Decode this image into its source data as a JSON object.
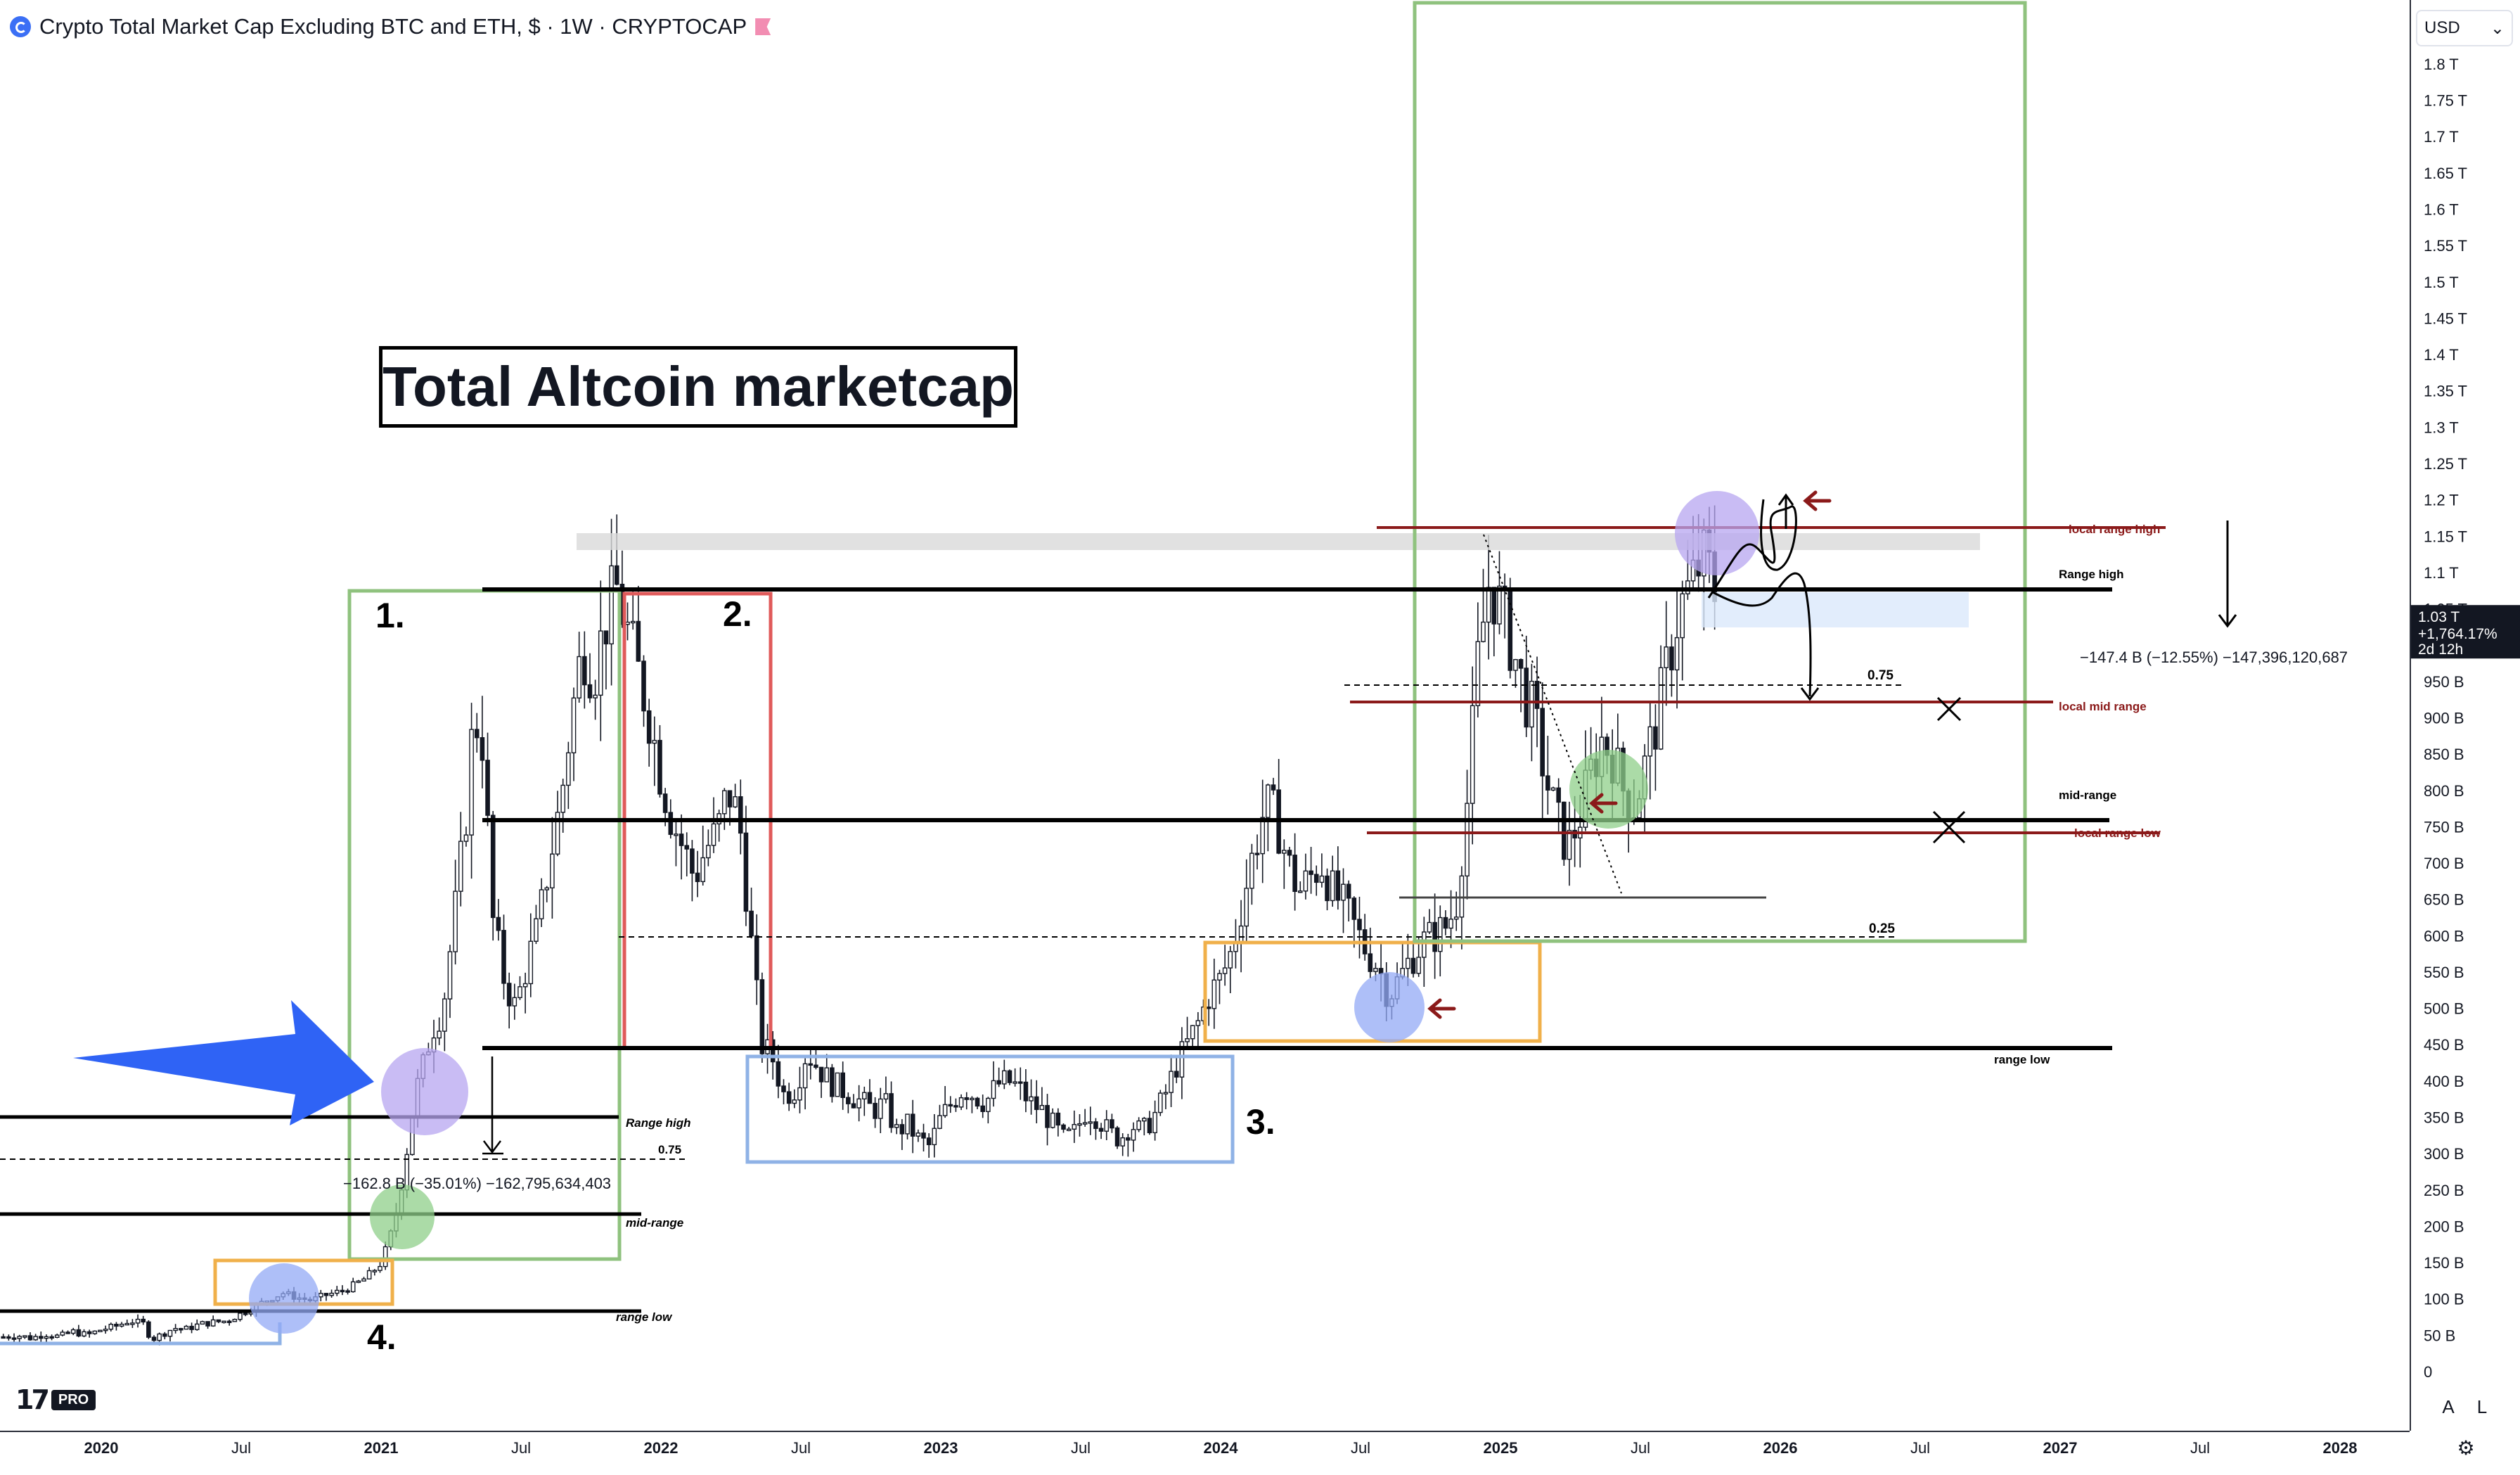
{
  "header": {
    "title": "Crypto Total Market Cap Excluding BTC and ETH, $ · 1W · CRYPTOCAP"
  },
  "currency_selector": {
    "label": "USD",
    "arrow": "⌄"
  },
  "branding": {
    "logo_text": "17",
    "pro_badge": "PRO"
  },
  "scale_buttons": {
    "auto": "A",
    "log": "L"
  },
  "settings_icon": "gear-icon",
  "colors": {
    "up_down_candle": "#131722",
    "green_box": "#8fc27e",
    "red_box": "#e05a5a",
    "blue_box": "#8fb2e6",
    "orange_box": "#f0b04a",
    "dark_red_line": "#8b1a1a",
    "blue_arrow": "#2f63f5",
    "purple_circle": "#b7a6f0",
    "green_circle": "#8fcf8a",
    "blue_circle": "#93aaf5"
  },
  "chart_data": {
    "type": "candlestick",
    "title": "Crypto Total Market Cap Excluding BTC and ETH, $ · 1W · CRYPTOCAP",
    "y_unit": "USD",
    "y_tick_labels": [
      "0",
      "50 B",
      "100 B",
      "150 B",
      "200 B",
      "250 B",
      "300 B",
      "350 B",
      "400 B",
      "450 B",
      "500 B",
      "550 B",
      "600 B",
      "650 B",
      "700 B",
      "750 B",
      "800 B",
      "850 B",
      "900 B",
      "950 B",
      "1.05 T",
      "1.1 T",
      "1.15 T",
      "1.2 T",
      "1.25 T",
      "1.3 T",
      "1.35 T",
      "1.4 T",
      "1.45 T",
      "1.5 T",
      "1.55 T",
      "1.6 T",
      "1.65 T",
      "1.7 T",
      "1.75 T",
      "1.8 T"
    ],
    "y_tick_values": [
      0,
      50,
      100,
      150,
      200,
      250,
      300,
      350,
      400,
      450,
      500,
      550,
      600,
      650,
      700,
      750,
      800,
      850,
      900,
      950,
      1050,
      1100,
      1150,
      1200,
      1250,
      1300,
      1350,
      1400,
      1450,
      1500,
      1550,
      1600,
      1650,
      1700,
      1750,
      1800
    ],
    "ylim_billions": [
      0,
      1840
    ],
    "x_tick_labels": [
      "2020",
      "Jul",
      "2021",
      "Jul",
      "2022",
      "Jul",
      "2023",
      "Jul",
      "2024",
      "Jul",
      "2025",
      "Jul",
      "2026",
      "Jul",
      "2027",
      "Jul",
      "2028"
    ],
    "x_tick_values": [
      2020.0,
      2020.5,
      2021.0,
      2021.5,
      2022.0,
      2022.5,
      2023.0,
      2023.5,
      2024.0,
      2024.5,
      2025.0,
      2025.5,
      2026.0,
      2026.5,
      2027.0,
      2027.5,
      2028.0
    ],
    "bold_x_ticks": [
      "2020",
      "2021",
      "2022",
      "2023",
      "2024",
      "2025",
      "2026",
      "2027",
      "2028"
    ],
    "xlim_years": [
      2019.64,
      2028.52
    ],
    "current_price_label": {
      "price": "1.03 T",
      "change": "+1,764.17%",
      "countdown": "2d 12h",
      "value_billions": 1030
    },
    "price_path_billions": [
      [
        2019.65,
        48
      ],
      [
        2019.7,
        50
      ],
      [
        2019.75,
        46
      ],
      [
        2019.8,
        52
      ],
      [
        2019.85,
        48
      ],
      [
        2019.9,
        55
      ],
      [
        2019.95,
        50
      ],
      [
        2020.0,
        58
      ],
      [
        2020.05,
        62
      ],
      [
        2020.1,
        70
      ],
      [
        2020.15,
        66
      ],
      [
        2020.18,
        44
      ],
      [
        2020.22,
        52
      ],
      [
        2020.26,
        60
      ],
      [
        2020.3,
        58
      ],
      [
        2020.35,
        65
      ],
      [
        2020.4,
        68
      ],
      [
        2020.45,
        70
      ],
      [
        2020.5,
        80
      ],
      [
        2020.55,
        90
      ],
      [
        2020.6,
        100
      ],
      [
        2020.65,
        108
      ],
      [
        2020.7,
        102
      ],
      [
        2020.75,
        98
      ],
      [
        2020.8,
        105
      ],
      [
        2020.85,
        110
      ],
      [
        2020.9,
        118
      ],
      [
        2020.95,
        130
      ],
      [
        2021.0,
        150
      ],
      [
        2021.03,
        180
      ],
      [
        2021.06,
        230
      ],
      [
        2021.09,
        300
      ],
      [
        2021.12,
        380
      ],
      [
        2021.15,
        420
      ],
      [
        2021.18,
        470
      ],
      [
        2021.22,
        500
      ],
      [
        2021.26,
        620
      ],
      [
        2021.3,
        750
      ],
      [
        2021.33,
        900
      ],
      [
        2021.36,
        880
      ],
      [
        2021.4,
        620
      ],
      [
        2021.44,
        540
      ],
      [
        2021.48,
        500
      ],
      [
        2021.52,
        560
      ],
      [
        2021.56,
        610
      ],
      [
        2021.6,
        700
      ],
      [
        2021.64,
        780
      ],
      [
        2021.68,
        900
      ],
      [
        2021.72,
        1000
      ],
      [
        2021.76,
        960
      ],
      [
        2021.8,
        1030
      ],
      [
        2021.84,
        1080
      ],
      [
        2021.88,
        1020
      ],
      [
        2021.92,
        960
      ],
      [
        2021.96,
        900
      ],
      [
        2022.0,
        820
      ],
      [
        2022.04,
        760
      ],
      [
        2022.08,
        720
      ],
      [
        2022.12,
        680
      ],
      [
        2022.16,
        720
      ],
      [
        2022.2,
        740
      ],
      [
        2022.24,
        800
      ],
      [
        2022.28,
        760
      ],
      [
        2022.32,
        600
      ],
      [
        2022.36,
        450
      ],
      [
        2022.4,
        430
      ],
      [
        2022.44,
        380
      ],
      [
        2022.48,
        390
      ],
      [
        2022.52,
        440
      ],
      [
        2022.56,
        420
      ],
      [
        2022.6,
        400
      ],
      [
        2022.64,
        390
      ],
      [
        2022.68,
        380
      ],
      [
        2022.72,
        370
      ],
      [
        2022.76,
        360
      ],
      [
        2022.8,
        370
      ],
      [
        2022.84,
        330
      ],
      [
        2022.88,
        340
      ],
      [
        2022.92,
        320
      ],
      [
        2022.96,
        310
      ],
      [
        2023.0,
        350
      ],
      [
        2023.04,
        370
      ],
      [
        2023.08,
        390
      ],
      [
        2023.12,
        380
      ],
      [
        2023.16,
        370
      ],
      [
        2023.2,
        395
      ],
      [
        2023.24,
        400
      ],
      [
        2023.28,
        390
      ],
      [
        2023.32,
        370
      ],
      [
        2023.36,
        360
      ],
      [
        2023.4,
        340
      ],
      [
        2023.44,
        320
      ],
      [
        2023.48,
        330
      ],
      [
        2023.52,
        360
      ],
      [
        2023.56,
        350
      ],
      [
        2023.6,
        330
      ],
      [
        2023.64,
        320
      ],
      [
        2023.68,
        340
      ],
      [
        2023.72,
        330
      ],
      [
        2023.76,
        350
      ],
      [
        2023.8,
        380
      ],
      [
        2023.84,
        420
      ],
      [
        2023.88,
        450
      ],
      [
        2023.92,
        480
      ],
      [
        2023.96,
        520
      ],
      [
        2024.0,
        540
      ],
      [
        2024.04,
        580
      ],
      [
        2024.08,
        650
      ],
      [
        2024.12,
        720
      ],
      [
        2024.16,
        780
      ],
      [
        2024.2,
        760
      ],
      [
        2024.24,
        700
      ],
      [
        2024.28,
        660
      ],
      [
        2024.32,
        680
      ],
      [
        2024.36,
        700
      ],
      [
        2024.4,
        660
      ],
      [
        2024.44,
        640
      ],
      [
        2024.48,
        610
      ],
      [
        2024.52,
        580
      ],
      [
        2024.56,
        560
      ],
      [
        2024.6,
        520
      ],
      [
        2024.64,
        540
      ],
      [
        2024.68,
        570
      ],
      [
        2024.72,
        590
      ],
      [
        2024.76,
        600
      ],
      [
        2024.8,
        610
      ],
      [
        2024.84,
        640
      ],
      [
        2024.88,
        780
      ],
      [
        2024.92,
        980
      ],
      [
        2024.96,
        1090
      ],
      [
        2025.0,
        1050
      ],
      [
        2025.04,
        1000
      ],
      [
        2025.08,
        940
      ],
      [
        2025.12,
        900
      ],
      [
        2025.16,
        820
      ],
      [
        2025.2,
        760
      ],
      [
        2025.24,
        720
      ],
      [
        2025.28,
        760
      ],
      [
        2025.32,
        820
      ],
      [
        2025.36,
        870
      ],
      [
        2025.4,
        850
      ],
      [
        2025.44,
        800
      ],
      [
        2025.48,
        780
      ],
      [
        2025.52,
        840
      ],
      [
        2025.56,
        900
      ],
      [
        2025.6,
        980
      ],
      [
        2025.64,
        1050
      ],
      [
        2025.68,
        1080
      ],
      [
        2025.72,
        1120
      ],
      [
        2025.76,
        1090
      ],
      [
        2025.78,
        1030
      ]
    ]
  },
  "annotations": {
    "title_box": "Total Altcoin marketcap",
    "numbers": [
      "1.",
      "2.",
      "3.",
      "4."
    ],
    "range_labels_right": {
      "local_range_high": "local range high",
      "range_high": "Range high",
      "fib_075": "0.75",
      "local_mid_range": "local mid range",
      "mid_range": "mid-range",
      "local_range_low": "local range low",
      "fib_025": "0.25",
      "range_low": "range low"
    },
    "range_labels_left": {
      "range_high": "Range high",
      "fib_075": "0.75",
      "mid_range": "mid-range",
      "range_low": "range low"
    },
    "measure_left": "−162.8 B (−35.01%) −162,795,634,403",
    "measure_right": "−147.4 B (−12.55%) −147,396,120,687"
  }
}
